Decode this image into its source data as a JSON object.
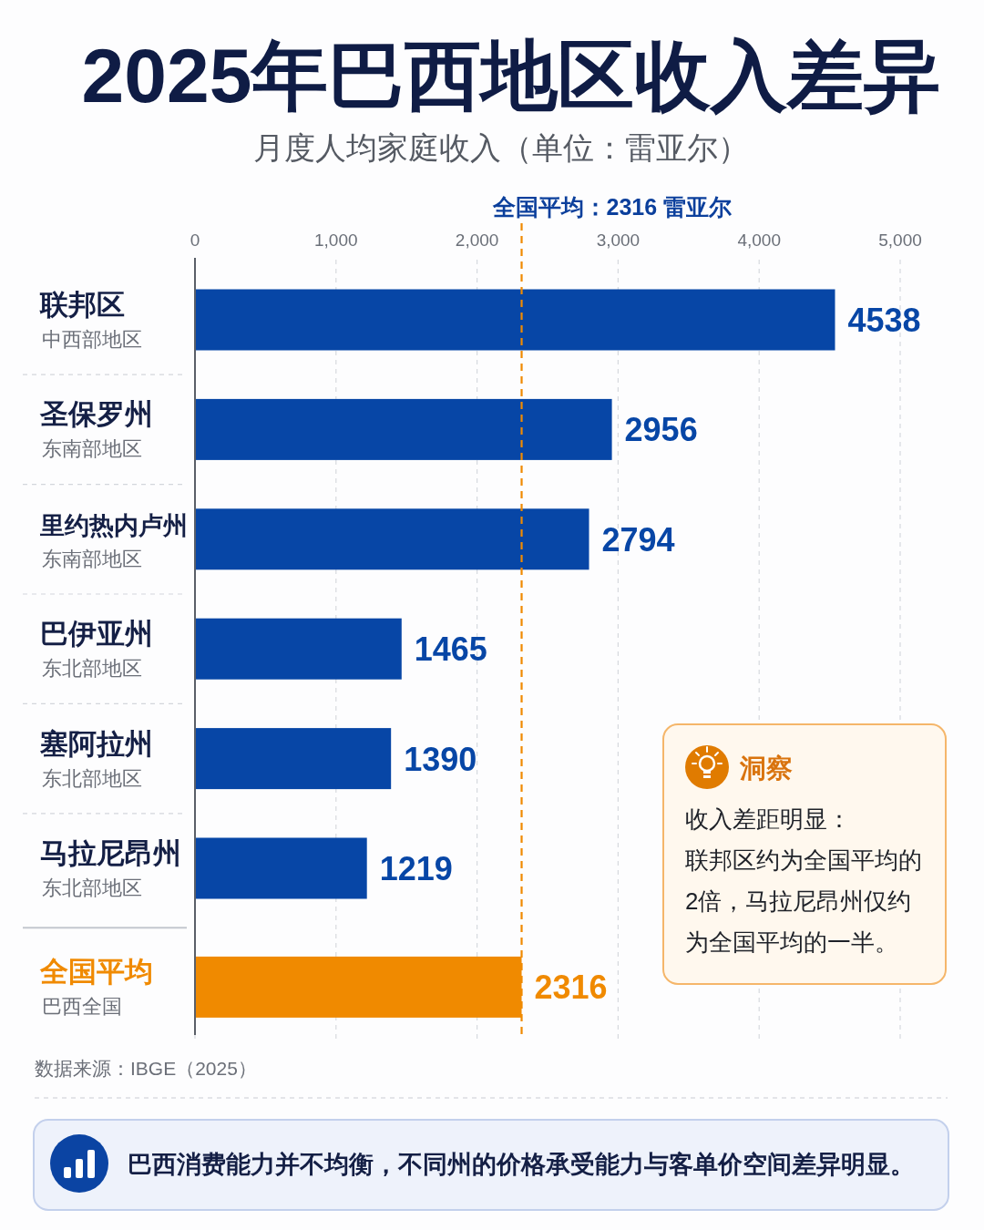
{
  "chart_data": {
    "type": "bar",
    "orientation": "horizontal",
    "title": "2025年巴西地区收入差异",
    "subtitle": "月度人均家庭收入（单位：雷亚尔）",
    "categories": [
      "联邦区",
      "圣保罗州",
      "里约热内卢州",
      "巴伊亚州",
      "塞阿拉州",
      "马拉尼昂州",
      "全国平均"
    ],
    "values": [
      4538,
      2956,
      2794,
      1465,
      1390,
      1219,
      2316
    ],
    "colors": [
      "#0746a6",
      "#0746a6",
      "#0746a6",
      "#0746a6",
      "#0746a6",
      "#0746a6",
      "#f08a00"
    ],
    "xlim": [
      0,
      5000
    ],
    "xticks": [
      0,
      {
        "value": 1000,
        "label": "1,000"
      },
      {
        "value": 2000,
        "label": "2,000"
      },
      {
        "value": 3000,
        "label": "3,000"
      },
      {
        "value": 4000,
        "label": "4,000"
      },
      {
        "value": 5000,
        "label": "5,000"
      }
    ],
    "grid": "x",
    "data_labels": true,
    "ref_lines": [
      {
        "axis": "x",
        "value": 2316,
        "label": "全国平均：2316 雷亚尔",
        "color": "#f08a00",
        "line_style": "dashed"
      }
    ],
    "annotations": [
      "中西部地区",
      "东南部地区",
      "东南部地区",
      "东北部地区",
      "东北部地区",
      "东北部地区",
      "巴西全国",
      "数据来源：IBGE（2025）",
      "洞察",
      "收入差距明显：",
      "联邦区约为全国平均的2倍，马拉尼昂州仅约为全国平均的一半。",
      "巴西消费能力并不均衡，不同州的价格承受能力与客单价空间差异明显。"
    ]
  }
}
